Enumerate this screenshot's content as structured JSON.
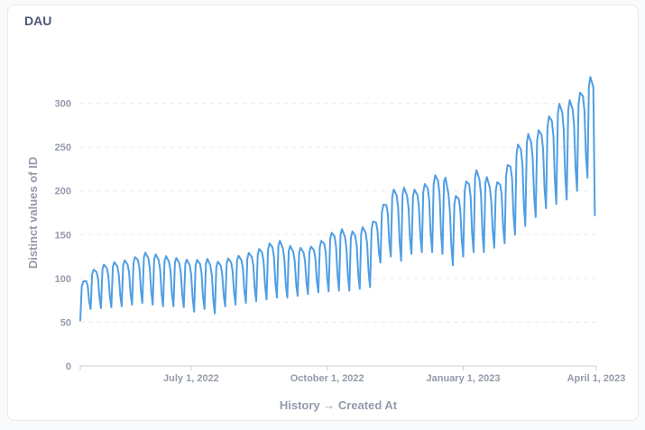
{
  "card": {
    "title": "DAU"
  },
  "chart_data": {
    "type": "line",
    "title": "DAU",
    "xlabel": "History → Created At",
    "ylabel": "Distinct values of ID",
    "ylim": [
      0,
      350
    ],
    "y_ticks": [
      0,
      50,
      100,
      150,
      200,
      250,
      300
    ],
    "x_range": [
      "2022-04-17",
      "2023-04-01"
    ],
    "x_ticks": [
      {
        "date": "2022-07-01",
        "label": "July 1, 2022"
      },
      {
        "date": "2022-10-01",
        "label": "October 1, 2022"
      },
      {
        "date": "2023-01-01",
        "label": "January 1, 2023"
      },
      {
        "date": "2023-04-01",
        "label": "April 1, 2023"
      }
    ],
    "grid": true,
    "series": [
      {
        "color": "#509ee3",
        "weekly_highs": [
          [
            "2022-04-17",
            92
          ],
          [
            "2022-04-24",
            108
          ],
          [
            "2022-05-01",
            115
          ],
          [
            "2022-05-08",
            118
          ],
          [
            "2022-05-15",
            120
          ],
          [
            "2022-05-22",
            122
          ],
          [
            "2022-05-29",
            130
          ],
          [
            "2022-06-05",
            128
          ],
          [
            "2022-06-12",
            126
          ],
          [
            "2022-06-19",
            124
          ],
          [
            "2022-06-26",
            122
          ],
          [
            "2022-07-03",
            120
          ],
          [
            "2022-07-10",
            124
          ],
          [
            "2022-07-17",
            118
          ],
          [
            "2022-07-24",
            122
          ],
          [
            "2022-07-31",
            125
          ],
          [
            "2022-08-07",
            128
          ],
          [
            "2022-08-14",
            132
          ],
          [
            "2022-08-21",
            138
          ],
          [
            "2022-08-28",
            145
          ],
          [
            "2022-09-04",
            138
          ],
          [
            "2022-09-11",
            135
          ],
          [
            "2022-09-18",
            135
          ],
          [
            "2022-09-25",
            140
          ],
          [
            "2022-10-02",
            150
          ],
          [
            "2022-10-09",
            158
          ],
          [
            "2022-10-16",
            152
          ],
          [
            "2022-10-23",
            158
          ],
          [
            "2022-10-30",
            160
          ],
          [
            "2022-11-06",
            178
          ],
          [
            "2022-11-13",
            200
          ],
          [
            "2022-11-20",
            205
          ],
          [
            "2022-11-27",
            200
          ],
          [
            "2022-12-04",
            205
          ],
          [
            "2022-12-11",
            215
          ],
          [
            "2022-12-18",
            225
          ],
          [
            "2022-12-25",
            190
          ],
          [
            "2023-01-01",
            205
          ],
          [
            "2023-01-08",
            225
          ],
          [
            "2023-01-15",
            220
          ],
          [
            "2023-01-22",
            205
          ],
          [
            "2023-01-29",
            222
          ],
          [
            "2023-02-05",
            248
          ],
          [
            "2023-02-12",
            265
          ],
          [
            "2023-02-19",
            265
          ],
          [
            "2023-02-26",
            280
          ],
          [
            "2023-03-05",
            298
          ],
          [
            "2023-03-12",
            303
          ],
          [
            "2023-03-19",
            305
          ],
          [
            "2023-03-26",
            330
          ]
        ],
        "weekly_lows": [
          [
            "2022-04-17",
            52
          ],
          [
            "2022-04-24",
            65
          ],
          [
            "2022-05-01",
            66
          ],
          [
            "2022-05-08",
            67
          ],
          [
            "2022-05-15",
            68
          ],
          [
            "2022-05-22",
            70
          ],
          [
            "2022-05-29",
            72
          ],
          [
            "2022-06-05",
            70
          ],
          [
            "2022-06-12",
            68
          ],
          [
            "2022-06-19",
            68
          ],
          [
            "2022-06-26",
            67
          ],
          [
            "2022-07-03",
            62
          ],
          [
            "2022-07-10",
            65
          ],
          [
            "2022-07-17",
            60
          ],
          [
            "2022-07-24",
            68
          ],
          [
            "2022-07-31",
            70
          ],
          [
            "2022-08-07",
            72
          ],
          [
            "2022-08-14",
            74
          ],
          [
            "2022-08-21",
            76
          ],
          [
            "2022-08-28",
            78
          ],
          [
            "2022-09-04",
            78
          ],
          [
            "2022-09-11",
            80
          ],
          [
            "2022-09-18",
            82
          ],
          [
            "2022-09-25",
            84
          ],
          [
            "2022-10-02",
            85
          ],
          [
            "2022-10-09",
            86
          ],
          [
            "2022-10-16",
            86
          ],
          [
            "2022-10-23",
            88
          ],
          [
            "2022-10-30",
            90
          ],
          [
            "2022-11-06",
            118
          ],
          [
            "2022-11-13",
            125
          ],
          [
            "2022-11-20",
            120
          ],
          [
            "2022-11-27",
            128
          ],
          [
            "2022-12-04",
            130
          ],
          [
            "2022-12-11",
            130
          ],
          [
            "2022-12-18",
            128
          ],
          [
            "2022-12-25",
            115
          ],
          [
            "2023-01-01",
            125
          ],
          [
            "2023-01-08",
            130
          ],
          [
            "2023-01-15",
            130
          ],
          [
            "2023-01-22",
            135
          ],
          [
            "2023-01-29",
            140
          ],
          [
            "2023-02-05",
            150
          ],
          [
            "2023-02-12",
            160
          ],
          [
            "2023-02-19",
            170
          ],
          [
            "2023-02-26",
            180
          ],
          [
            "2023-03-05",
            185
          ],
          [
            "2023-03-12",
            190
          ],
          [
            "2023-03-19",
            200
          ],
          [
            "2023-03-26",
            215
          ]
        ],
        "end_point": [
          "2023-03-31",
          172
        ]
      }
    ]
  }
}
